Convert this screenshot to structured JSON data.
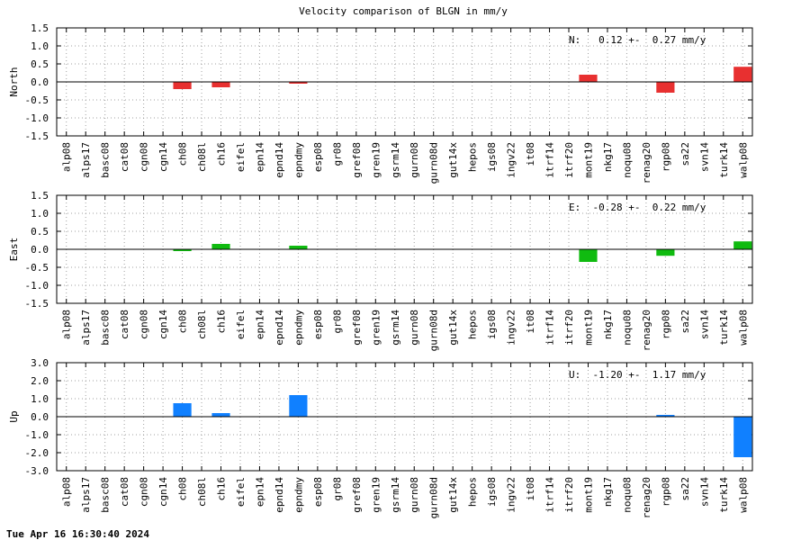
{
  "title": "Velocity comparison of BLGN in mm/y",
  "footer": "Tue Apr 16 16:30:40 2024",
  "chart_data": [
    {
      "type": "bar",
      "ylabel": "North",
      "ylim": [
        -1.5,
        1.5
      ],
      "yticks": [
        "1.5",
        "1.0",
        "0.5",
        "0.0",
        "-0.5",
        "-1.0",
        "-1.5"
      ],
      "grid": true,
      "color": "#e83030",
      "annotation": "N:   0.12 +-  0.27 mm/y",
      "categories": [
        "alp08",
        "alps17",
        "basc08",
        "cat08",
        "cgn08",
        "cgn14",
        "ch08",
        "ch08l",
        "ch16",
        "eifel",
        "epn14",
        "epnd14",
        "epndmy",
        "esp08",
        "gr08",
        "gref08",
        "gren19",
        "gsrm14",
        "gurn08",
        "gurn08d",
        "gut14x",
        "hepos",
        "igs08",
        "ingv22",
        "it08",
        "itrf14",
        "itrf20",
        "mont19",
        "nkg17",
        "noqu08",
        "renag20",
        "rgp08",
        "sa22",
        "svn14",
        "turk14",
        "walp08"
      ],
      "values": [
        null,
        null,
        null,
        null,
        null,
        null,
        -0.2,
        null,
        -0.15,
        null,
        null,
        null,
        -0.05,
        null,
        null,
        null,
        null,
        null,
        null,
        null,
        null,
        null,
        null,
        null,
        null,
        null,
        null,
        0.2,
        null,
        null,
        null,
        -0.3,
        null,
        null,
        null,
        0.42
      ]
    },
    {
      "type": "bar",
      "ylabel": "East",
      "ylim": [
        -1.5,
        1.5
      ],
      "yticks": [
        "1.5",
        "1.0",
        "0.5",
        "0.0",
        "-0.5",
        "-1.0",
        "-1.5"
      ],
      "grid": true,
      "color": "#10bb10",
      "annotation": "E:  -0.28 +-  0.22 mm/y",
      "categories": [
        "alp08",
        "alps17",
        "basc08",
        "cat08",
        "cgn08",
        "cgn14",
        "ch08",
        "ch08l",
        "ch16",
        "eifel",
        "epn14",
        "epnd14",
        "epndmy",
        "esp08",
        "gr08",
        "gref08",
        "gren19",
        "gsrm14",
        "gurn08",
        "gurn08d",
        "gut14x",
        "hepos",
        "igs08",
        "ingv22",
        "it08",
        "itrf14",
        "itrf20",
        "mont19",
        "nkg17",
        "noqu08",
        "renag20",
        "rgp08",
        "sa22",
        "svn14",
        "turk14",
        "walp08"
      ],
      "values": [
        null,
        null,
        null,
        null,
        null,
        null,
        -0.05,
        null,
        0.15,
        null,
        null,
        null,
        0.1,
        null,
        null,
        null,
        null,
        null,
        null,
        null,
        null,
        null,
        null,
        null,
        null,
        null,
        null,
        -0.35,
        null,
        null,
        null,
        -0.18,
        null,
        null,
        null,
        0.22
      ]
    },
    {
      "type": "bar",
      "ylabel": "Up",
      "ylim": [
        -3.0,
        3.0
      ],
      "yticks": [
        "3.0",
        "2.0",
        "1.0",
        "0.0",
        "-1.0",
        "-2.0",
        "-3.0"
      ],
      "grid": true,
      "color": "#1080ff",
      "annotation": "U:  -1.20 +-  1.17 mm/y",
      "categories": [
        "alp08",
        "alps17",
        "basc08",
        "cat08",
        "cgn08",
        "cgn14",
        "ch08",
        "ch08l",
        "ch16",
        "eifel",
        "epn14",
        "epnd14",
        "epndmy",
        "esp08",
        "gr08",
        "gref08",
        "gren19",
        "gsrm14",
        "gurn08",
        "gurn08d",
        "gut14x",
        "hepos",
        "igs08",
        "ingv22",
        "it08",
        "itrf14",
        "itrf20",
        "mont19",
        "nkg17",
        "noqu08",
        "renag20",
        "rgp08",
        "sa22",
        "svn14",
        "turk14",
        "walp08"
      ],
      "values": [
        null,
        null,
        null,
        null,
        null,
        null,
        0.75,
        null,
        0.2,
        null,
        null,
        null,
        1.2,
        null,
        null,
        null,
        null,
        null,
        null,
        null,
        null,
        null,
        null,
        null,
        null,
        null,
        null,
        null,
        null,
        null,
        null,
        0.1,
        null,
        null,
        null,
        -2.25
      ]
    }
  ]
}
